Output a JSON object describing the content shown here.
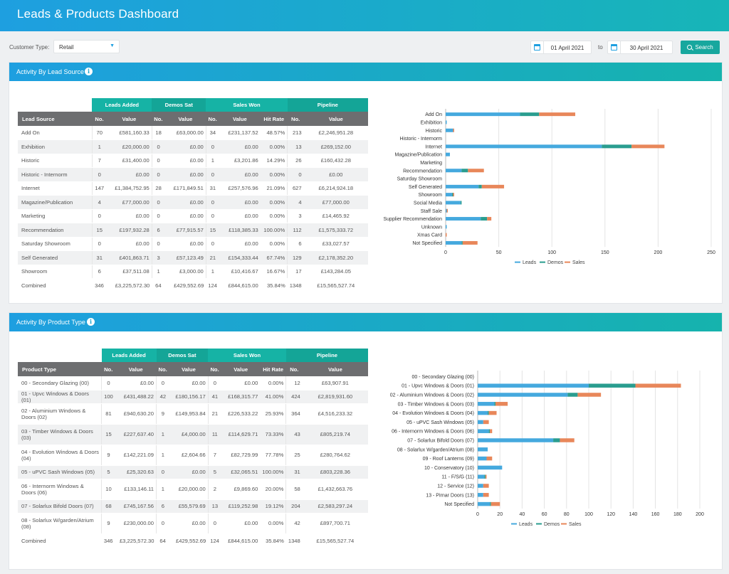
{
  "header": {
    "title": "Leads & Products Dashboard"
  },
  "filters": {
    "customer_type_label": "Customer Type:",
    "customer_type_value": "Retail",
    "date_from": "01 April 2021",
    "to_label": "to",
    "date_to": "30 April 2021",
    "search_label": "Search"
  },
  "colors": {
    "leads": "#45a9de",
    "demos": "#2a9d8f",
    "sales": "#e8875a",
    "header": "#1e9fe0",
    "accent": "#16b3a5"
  },
  "icons": {
    "info": "info-icon",
    "calendar": "calendar-icon",
    "search": "search-icon",
    "dropdown": "chevron-down-icon"
  },
  "lead_panel": {
    "title": "Activity By Lead Source",
    "info": "i",
    "groups": [
      "Leads Added",
      "Demos Sat",
      "Sales Won",
      "Pipeline"
    ],
    "columns": [
      "Lead Source",
      "No.",
      "Value",
      "No.",
      "Value",
      "No.",
      "Value",
      "Hit Rate",
      "No.",
      "Value"
    ],
    "rows": [
      [
        "Add On",
        "70",
        "£581,160.33",
        "18",
        "£63,000.00",
        "34",
        "£231,137.52",
        "48.57%",
        "213",
        "£2,246,951.28"
      ],
      [
        "Exhibition",
        "1",
        "£20,000.00",
        "0",
        "£0.00",
        "0",
        "£0.00",
        "0.00%",
        "13",
        "£269,152.00"
      ],
      [
        "Historic",
        "7",
        "£31,400.00",
        "0",
        "£0.00",
        "1",
        "£3,201.86",
        "14.29%",
        "26",
        "£160,432.28"
      ],
      [
        "Historic - Internorm",
        "0",
        "£0.00",
        "0",
        "£0.00",
        "0",
        "£0.00",
        "0.00%",
        "0",
        "£0.00"
      ],
      [
        "Internet",
        "147",
        "£1,384,752.95",
        "28",
        "£171,849.51",
        "31",
        "£257,576.96",
        "21.09%",
        "627",
        "£6,214,924.18"
      ],
      [
        "Magazine/Publication",
        "4",
        "£77,000.00",
        "0",
        "£0.00",
        "0",
        "£0.00",
        "0.00%",
        "4",
        "£77,000.00"
      ],
      [
        "Marketing",
        "0",
        "£0.00",
        "0",
        "£0.00",
        "0",
        "£0.00",
        "0.00%",
        "3",
        "£14,465.92"
      ],
      [
        "Recommendation",
        "15",
        "£197,932.28",
        "6",
        "£77,915.57",
        "15",
        "£118,385.33",
        "100.00%",
        "112",
        "£1,575,333.72"
      ],
      [
        "Saturday Showroom",
        "0",
        "£0.00",
        "0",
        "£0.00",
        "0",
        "£0.00",
        "0.00%",
        "6",
        "£33,027.57"
      ],
      [
        "Self Generated",
        "31",
        "£401,863.71",
        "3",
        "£57,123.49",
        "21",
        "£154,333.44",
        "67.74%",
        "129",
        "£2,178,352.20"
      ],
      [
        "Showroom",
        "6",
        "£37,511.08",
        "1",
        "£3,000.00",
        "1",
        "£10,416.67",
        "16.67%",
        "17",
        "£143,284.05"
      ]
    ],
    "total": [
      "Combined",
      "346",
      "£3,225,572.30",
      "64",
      "£429,552.69",
      "124",
      "£844,615.00",
      "35.84%",
      "1348",
      "£15,565,527.74"
    ]
  },
  "product_panel": {
    "title": "Activity By Product Type",
    "info": "i",
    "groups": [
      "Leads Added",
      "Demos Sat",
      "Sales Won",
      "Pipeline"
    ],
    "columns": [
      "Product Type",
      "No.",
      "Value",
      "No.",
      "Value",
      "No.",
      "Value",
      "Hit Rate",
      "No.",
      "Value"
    ],
    "rows": [
      [
        "00 - Secondary Glazing (00)",
        "0",
        "£0.00",
        "0",
        "£0.00",
        "0",
        "£0.00",
        "0.00%",
        "12",
        "£63,907.91"
      ],
      [
        "01 - Upvc Windows & Doors (01)",
        "100",
        "£431,488.22",
        "42",
        "£180,156.17",
        "41",
        "£168,315.77",
        "41.00%",
        "424",
        "£2,819,931.60"
      ],
      [
        "02 - Aluminium Windows & Doors (02)",
        "81",
        "£940,630.20",
        "9",
        "£149,953.84",
        "21",
        "£226,533.22",
        "25.93%",
        "364",
        "£4,516,233.32"
      ],
      [
        "03 - Timber Windows & Doors (03)",
        "15",
        "£227,637.40",
        "1",
        "£4,000.00",
        "11",
        "£114,629.71",
        "73.33%",
        "43",
        "£805,219.74"
      ],
      [
        "04 - Evolution Windows & Doors (04)",
        "9",
        "£142,221.09",
        "1",
        "£2,604.66",
        "7",
        "£82,729.99",
        "77.78%",
        "25",
        "£280,764.62"
      ],
      [
        "05 - uPVC Sash Windows (05)",
        "5",
        "£25,320.63",
        "0",
        "£0.00",
        "5",
        "£32,065.51",
        "100.00%",
        "31",
        "£803,228.36"
      ],
      [
        "06 - Internorm Windows & Doors (06)",
        "10",
        "£133,146.11",
        "1",
        "£20,000.00",
        "2",
        "£9,869.60",
        "20.00%",
        "58",
        "£1,432,663.76"
      ],
      [
        "07 - Solarlux Bifold Doors (07)",
        "68",
        "£745,167.56",
        "6",
        "£55,579.69",
        "13",
        "£119,252.98",
        "19.12%",
        "204",
        "£2,583,297.24"
      ],
      [
        "08 - Solarlux W/garden/Atrium (08)",
        "9",
        "£230,000.00",
        "0",
        "£0.00",
        "0",
        "£0.00",
        "0.00%",
        "42",
        "£897,700.71"
      ]
    ],
    "total": [
      "Combined",
      "346",
      "£3,225,572.30",
      "64",
      "£429,552.69",
      "124",
      "£844,615.00",
      "35.84%",
      "1348",
      "£15,565,527.74"
    ]
  },
  "chart_data": [
    {
      "type": "bar",
      "orientation": "horizontal",
      "stacked": true,
      "categories": [
        "Add On",
        "Exhibition",
        "Historic",
        "Historic - Internorm",
        "Internet",
        "Magazine/Publication",
        "Marketing",
        "Recommendation",
        "Saturday Showroom",
        "Self Generated",
        "Showroom",
        "Social Media",
        "Staff Sale",
        "Supplier Recommendation",
        "Unknown",
        "Xmas Card",
        "Not Specified"
      ],
      "series": [
        {
          "name": "Leads",
          "values": [
            70,
            1,
            7,
            0,
            147,
            4,
            0,
            15,
            0,
            31,
            6,
            14,
            1,
            33,
            1,
            0,
            15
          ]
        },
        {
          "name": "Demos",
          "values": [
            18,
            0,
            0,
            0,
            28,
            0,
            0,
            6,
            0,
            3,
            1,
            1,
            0,
            6,
            0,
            0,
            1
          ]
        },
        {
          "name": "Sales",
          "values": [
            34,
            0,
            1,
            0,
            31,
            0,
            0,
            15,
            0,
            21,
            1,
            0,
            1,
            4,
            0,
            1,
            14
          ]
        }
      ],
      "xticks": [
        "0",
        "50",
        "100",
        "150",
        "200",
        "250"
      ],
      "xlim": [
        0,
        250
      ],
      "grid": true,
      "legend": "bottom"
    },
    {
      "type": "bar",
      "orientation": "horizontal",
      "stacked": true,
      "categories": [
        "00 - Secondary Glazing (00)",
        "01 - Upvc Windows & Doors (01)",
        "02 - Aluminium Windows & Doors (02)",
        "03 - Timber Windows & Doors (03)",
        "04 - Evolution Windows & Doors (04)",
        "05 - uPVC Sash Windows (05)",
        "06 - Internorm Windows & Doors (06)",
        "07 - Solarlux Bifold Doors (07)",
        "08 - Solarlux W/garden/Atrium (08)",
        "09 - Roof Lanterns (09)",
        "10 - Conservatory (10)",
        "11 - F/S/G (11)",
        "12 - Service (12)",
        "13 - Pirnar Doors (13)",
        "Not Specified"
      ],
      "series": [
        {
          "name": "Leads",
          "values": [
            0,
            100,
            81,
            15,
            9,
            5,
            10,
            68,
            9,
            8,
            22,
            6,
            5,
            5,
            11
          ]
        },
        {
          "name": "Demos",
          "values": [
            0,
            42,
            9,
            1,
            1,
            0,
            1,
            6,
            0,
            0,
            0,
            1,
            0,
            0,
            1
          ]
        },
        {
          "name": "Sales",
          "values": [
            0,
            41,
            21,
            11,
            7,
            5,
            2,
            13,
            0,
            5,
            0,
            1,
            5,
            5,
            8
          ]
        }
      ],
      "xticks": [
        "0",
        "20",
        "40",
        "60",
        "80",
        "100",
        "120",
        "140",
        "160",
        "180",
        "200"
      ],
      "xlim": [
        0,
        200
      ],
      "grid": true,
      "legend": "bottom"
    }
  ]
}
